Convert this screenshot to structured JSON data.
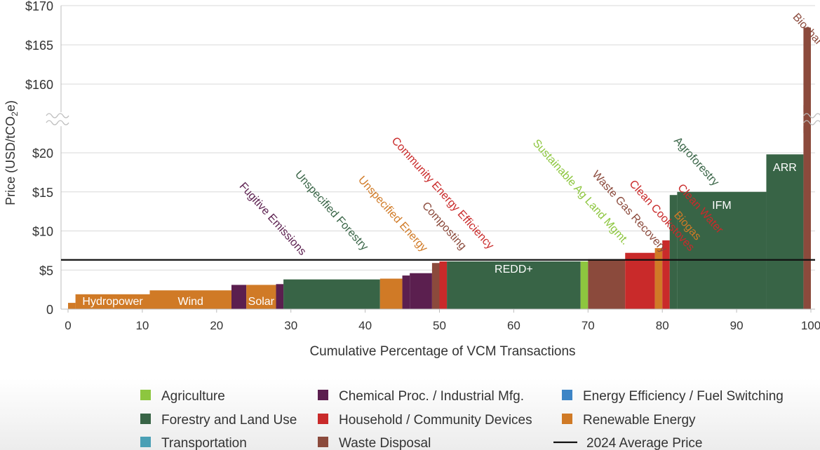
{
  "chart_data": {
    "type": "bar",
    "title": "",
    "xlabel": "Cumulative Percentage of VCM Transactions",
    "ylabel": "Price (USD/tCO",
    "ylabel_sub": "2",
    "ylabel_tail": "e)",
    "xlim": [
      0,
      100
    ],
    "ylim_lower": [
      0,
      20
    ],
    "ylim_upper": [
      160,
      170
    ],
    "axis_break": true,
    "grid": true,
    "x_ticks": [
      "0",
      "10",
      "20",
      "30",
      "40",
      "50",
      "60",
      "70",
      "80",
      "90",
      "100"
    ],
    "y_ticks": [
      {
        "value": 0,
        "label": "0"
      },
      {
        "value": 5,
        "label": "$5"
      },
      {
        "value": 10,
        "label": "$10"
      },
      {
        "value": 15,
        "label": "$15"
      },
      {
        "value": 20,
        "label": "$20"
      },
      {
        "value": 160,
        "label": "$160"
      },
      {
        "value": 165,
        "label": "$165"
      },
      {
        "value": 170,
        "label": "$170"
      }
    ],
    "average_price": 6.3,
    "colors": {
      "Agriculture": "#8dc63f",
      "Chemical Proc. / Industrial Mfg.": "#5b1f4f",
      "Energy Efficiency / Fuel Switching": "#3d85c6",
      "Forestry and Land Use": "#386446",
      "Household / Community Devices": "#c92a2a",
      "Renewable Energy": "#d07a26",
      "Transportation": "#4aa0b5",
      "Waste Disposal": "#8b4a3c"
    },
    "bars": [
      {
        "x0": 0,
        "x1": 1,
        "value": 0.8,
        "category": "Renewable Energy"
      },
      {
        "x0": 1,
        "x1": 11,
        "value": 1.9,
        "category": "Renewable Energy",
        "inside_label": "Hydropower"
      },
      {
        "x0": 11,
        "x1": 22,
        "value": 2.4,
        "category": "Renewable Energy",
        "inside_label": "Wind"
      },
      {
        "x0": 22,
        "x1": 24,
        "value": 3.1,
        "category": "Chemical Proc. / Industrial Mfg."
      },
      {
        "x0": 24,
        "x1": 28,
        "value": 3.1,
        "category": "Renewable Energy",
        "inside_label": "Solar"
      },
      {
        "x0": 28,
        "x1": 29,
        "value": 3.2,
        "category": "Chemical Proc. / Industrial Mfg."
      },
      {
        "x0": 29,
        "x1": 42,
        "value": 3.8,
        "category": "Forestry and Land Use"
      },
      {
        "x0": 42,
        "x1": 45,
        "value": 3.9,
        "category": "Renewable Energy"
      },
      {
        "x0": 45,
        "x1": 46,
        "value": 4.3,
        "category": "Chemical Proc. / Industrial Mfg."
      },
      {
        "x0": 46,
        "x1": 49,
        "value": 4.6,
        "category": "Chemical Proc. / Industrial Mfg."
      },
      {
        "x0": 49,
        "x1": 50,
        "value": 5.9,
        "category": "Waste Disposal"
      },
      {
        "x0": 50,
        "x1": 51,
        "value": 6.1,
        "category": "Household / Community Devices"
      },
      {
        "x0": 51,
        "x1": 69,
        "value": 6.1,
        "category": "Forestry and Land Use",
        "inside_label": "REDD+"
      },
      {
        "x0": 69,
        "x1": 70,
        "value": 6.1,
        "category": "Agriculture"
      },
      {
        "x0": 70,
        "x1": 75,
        "value": 6.4,
        "category": "Waste Disposal"
      },
      {
        "x0": 75,
        "x1": 79,
        "value": 7.2,
        "category": "Household / Community Devices"
      },
      {
        "x0": 79,
        "x1": 80,
        "value": 7.8,
        "category": "Renewable Energy"
      },
      {
        "x0": 80,
        "x1": 81,
        "value": 8.8,
        "category": "Household / Community Devices"
      },
      {
        "x0": 81,
        "x1": 82,
        "value": 14.6,
        "category": "Forestry and Land Use"
      },
      {
        "x0": 82,
        "x1": 94,
        "value": 15.0,
        "category": "Forestry and Land Use",
        "inside_label": "IFM"
      },
      {
        "x0": 94,
        "x1": 99,
        "value": 19.8,
        "category": "Forestry and Land Use",
        "inside_label": "ARR"
      },
      {
        "x0": 99,
        "x1": 100,
        "value": 167.2,
        "category": "Waste Disposal"
      }
    ],
    "annotations": [
      {
        "text": "Fugitive Emissions",
        "x": 23,
        "y": 15.7,
        "category": "Chemical Proc. / Industrial Mfg."
      },
      {
        "text": "Unspecified Forestry",
        "x": 30.5,
        "y": 17.2,
        "category": "Forestry and Land Use"
      },
      {
        "text": "Unspecified Energy",
        "x": 39,
        "y": 16.5,
        "category": "Renewable Energy"
      },
      {
        "text": "Composting",
        "x": 47.6,
        "y": 13.2,
        "category": "Waste Disposal"
      },
      {
        "text": "Community Energy Efficiency",
        "x": 43.5,
        "y": 21.5,
        "category": "Household / Community Devices"
      },
      {
        "text": "Sustainable Ag Land Mgmt.",
        "x": 62.5,
        "y": 21.2,
        "category": "Agriculture"
      },
      {
        "text": "Waste Gas Recovery",
        "x": 70.5,
        "y": 17.2,
        "category": "Waste Disposal"
      },
      {
        "text": "Clean Cookstoves",
        "x": 75.5,
        "y": 16.0,
        "category": "Household / Community Devices"
      },
      {
        "text": "Clean Water",
        "x": 82,
        "y": 15.5,
        "category": "Household / Community Devices"
      },
      {
        "text": "Biogas",
        "x": 81.5,
        "y": 12.0,
        "category": "Renewable Energy"
      },
      {
        "text": "Agroforestry",
        "x": 81.5,
        "y": 21.5,
        "category": "Forestry and Land Use"
      },
      {
        "text": "Biochar Production",
        "x": 97.5,
        "y": 168.5,
        "category": "Waste Disposal"
      }
    ],
    "legend": {
      "placement": "bottom",
      "items": [
        {
          "label": "Agriculture",
          "color": "#8dc63f",
          "kind": "box"
        },
        {
          "label": "Chemical Proc. / Industrial Mfg.",
          "color": "#5b1f4f",
          "kind": "box"
        },
        {
          "label": "Energy Efficiency / Fuel Switching",
          "color": "#3d85c6",
          "kind": "box"
        },
        {
          "label": "Forestry and Land Use",
          "color": "#386446",
          "kind": "box"
        },
        {
          "label": "Household / Community Devices",
          "color": "#c92a2a",
          "kind": "box"
        },
        {
          "label": "Renewable Energy",
          "color": "#d07a26",
          "kind": "box"
        },
        {
          "label": "Transportation",
          "color": "#4aa0b5",
          "kind": "box"
        },
        {
          "label": "Waste Disposal",
          "color": "#8b4a3c",
          "kind": "box"
        },
        {
          "label": "2024 Average Price",
          "color": "#111111",
          "kind": "line"
        }
      ]
    }
  }
}
